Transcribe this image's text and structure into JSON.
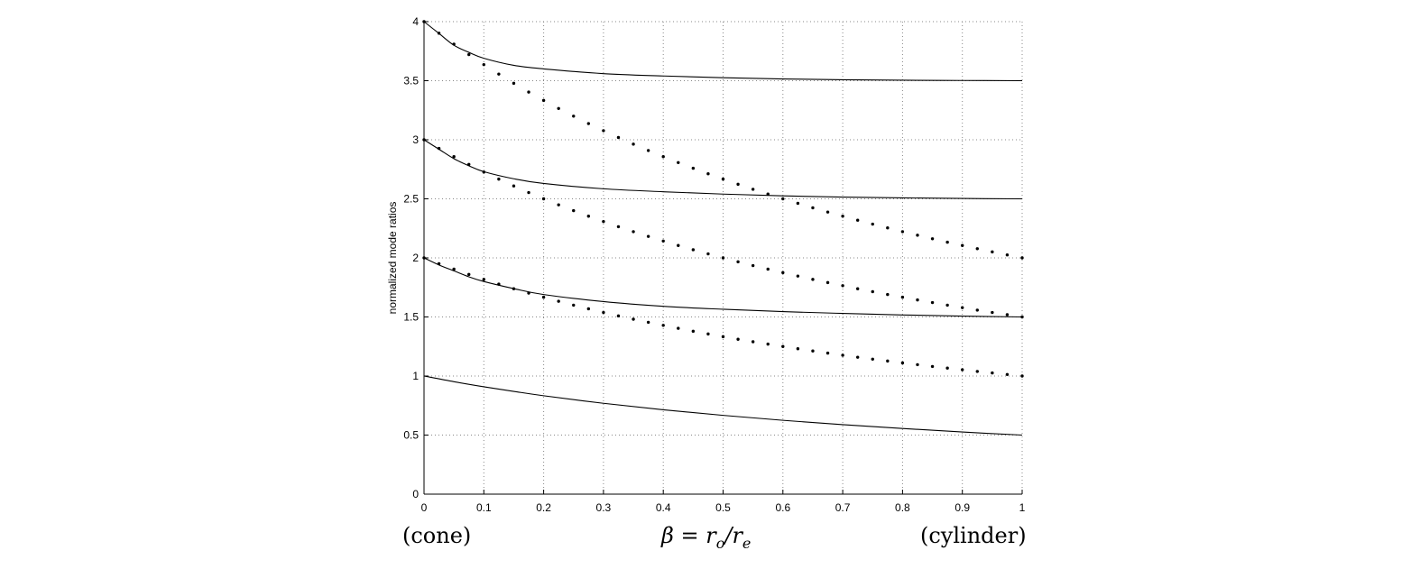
{
  "chart_data": {
    "type": "line",
    "xlabel": "β = r_o/r_e",
    "ylabel": "normalized mode ratios",
    "xlim": [
      0,
      1
    ],
    "ylim": [
      0,
      4
    ],
    "xticks": [
      0,
      0.1,
      0.2,
      0.3,
      0.4,
      0.5,
      0.6,
      0.7,
      0.8,
      0.9,
      1
    ],
    "yticks": [
      0,
      0.5,
      1,
      1.5,
      2,
      2.5,
      3,
      3.5,
      4
    ],
    "xtick_labels": [
      "0",
      "0.1",
      "0.2",
      "0.3",
      "0.4",
      "0.5",
      "0.6",
      "0.7",
      "0.8",
      "0.9",
      "1"
    ],
    "ytick_labels": [
      "0",
      "0.5",
      "1",
      "1.5",
      "2",
      "2.5",
      "3",
      "3.5",
      "4"
    ],
    "grid": true,
    "annotations": {
      "left": "(cone)",
      "center": "β = r_o/r_e",
      "right": "(cylinder)"
    },
    "solid_curves": [
      {
        "style": "solid",
        "x": [
          0,
          0.05,
          0.1,
          0.15,
          0.2,
          0.3,
          0.4,
          0.5,
          0.6,
          0.7,
          0.8,
          0.9,
          1.0
        ],
        "values": [
          1.0,
          0.952,
          0.909,
          0.87,
          0.833,
          0.769,
          0.714,
          0.667,
          0.625,
          0.588,
          0.556,
          0.526,
          0.5
        ]
      },
      {
        "style": "solid",
        "x": [
          0,
          0.025,
          0.05,
          0.075,
          0.1,
          0.15,
          0.2,
          0.3,
          0.4,
          0.5,
          0.6,
          0.7,
          0.8,
          0.9,
          1.0
        ],
        "values": [
          2.0,
          1.94,
          1.89,
          1.84,
          1.8,
          1.74,
          1.69,
          1.63,
          1.59,
          1.565,
          1.545,
          1.53,
          1.517,
          1.507,
          1.5
        ]
      },
      {
        "style": "solid",
        "x": [
          0,
          0.025,
          0.05,
          0.075,
          0.1,
          0.15,
          0.2,
          0.3,
          0.4,
          0.5,
          0.6,
          0.7,
          0.8,
          0.9,
          1.0
        ],
        "values": [
          3.0,
          2.92,
          2.84,
          2.78,
          2.73,
          2.67,
          2.63,
          2.585,
          2.56,
          2.54,
          2.525,
          2.515,
          2.508,
          2.503,
          2.5
        ]
      },
      {
        "style": "solid",
        "x": [
          0,
          0.025,
          0.05,
          0.075,
          0.1,
          0.15,
          0.2,
          0.3,
          0.4,
          0.5,
          0.6,
          0.7,
          0.8,
          0.9,
          1.0
        ],
        "values": [
          4.0,
          3.9,
          3.8,
          3.74,
          3.69,
          3.63,
          3.6,
          3.56,
          3.54,
          3.525,
          3.515,
          3.508,
          3.504,
          3.502,
          3.5
        ]
      }
    ],
    "dotted_series": [
      {
        "style": "dots",
        "x": [
          0,
          0.025,
          0.05,
          0.075,
          0.1,
          0.125,
          0.15,
          0.175,
          0.2,
          0.225,
          0.25,
          0.275,
          0.3,
          0.325,
          0.35,
          0.375,
          0.4,
          0.425,
          0.45,
          0.475,
          0.5,
          0.525,
          0.55,
          0.575,
          0.6,
          0.625,
          0.65,
          0.675,
          0.7,
          0.725,
          0.75,
          0.775,
          0.8,
          0.825,
          0.85,
          0.875,
          0.9,
          0.925,
          0.95,
          0.975,
          1.0
        ],
        "values": [
          2.0,
          1.951,
          1.905,
          1.86,
          1.818,
          1.778,
          1.739,
          1.702,
          1.667,
          1.633,
          1.6,
          1.569,
          1.538,
          1.509,
          1.481,
          1.455,
          1.429,
          1.404,
          1.379,
          1.356,
          1.333,
          1.311,
          1.29,
          1.27,
          1.25,
          1.231,
          1.212,
          1.194,
          1.176,
          1.159,
          1.143,
          1.127,
          1.111,
          1.096,
          1.081,
          1.067,
          1.053,
          1.039,
          1.026,
          1.013,
          1.0
        ]
      },
      {
        "style": "dots",
        "x": [
          0,
          0.025,
          0.05,
          0.075,
          0.1,
          0.125,
          0.15,
          0.175,
          0.2,
          0.225,
          0.25,
          0.275,
          0.3,
          0.325,
          0.35,
          0.375,
          0.4,
          0.425,
          0.45,
          0.475,
          0.5,
          0.525,
          0.55,
          0.575,
          0.6,
          0.625,
          0.65,
          0.675,
          0.7,
          0.725,
          0.75,
          0.775,
          0.8,
          0.825,
          0.85,
          0.875,
          0.9,
          0.925,
          0.95,
          0.975,
          1.0
        ],
        "values": [
          3.0,
          2.927,
          2.857,
          2.791,
          2.727,
          2.667,
          2.609,
          2.553,
          2.5,
          2.449,
          2.4,
          2.353,
          2.308,
          2.264,
          2.222,
          2.182,
          2.143,
          2.105,
          2.069,
          2.034,
          2.0,
          1.967,
          1.935,
          1.905,
          1.875,
          1.846,
          1.818,
          1.791,
          1.765,
          1.739,
          1.714,
          1.69,
          1.667,
          1.644,
          1.622,
          1.6,
          1.579,
          1.558,
          1.538,
          1.519,
          1.5
        ]
      },
      {
        "style": "dots",
        "x": [
          0,
          0.025,
          0.05,
          0.075,
          0.1,
          0.125,
          0.15,
          0.175,
          0.2,
          0.225,
          0.25,
          0.275,
          0.3,
          0.325,
          0.35,
          0.375,
          0.4,
          0.425,
          0.45,
          0.475,
          0.5,
          0.525,
          0.55,
          0.575,
          0.6,
          0.625,
          0.65,
          0.675,
          0.7,
          0.725,
          0.75,
          0.775,
          0.8,
          0.825,
          0.85,
          0.875,
          0.9,
          0.925,
          0.95,
          0.975,
          1.0
        ],
        "values": [
          4.0,
          3.902,
          3.81,
          3.721,
          3.636,
          3.556,
          3.478,
          3.404,
          3.333,
          3.265,
          3.2,
          3.137,
          3.077,
          3.019,
          2.963,
          2.909,
          2.857,
          2.807,
          2.759,
          2.712,
          2.667,
          2.623,
          2.581,
          2.54,
          2.5,
          2.462,
          2.424,
          2.388,
          2.353,
          2.319,
          2.286,
          2.254,
          2.222,
          2.192,
          2.162,
          2.133,
          2.105,
          2.078,
          2.051,
          2.025,
          2.0
        ]
      }
    ]
  }
}
